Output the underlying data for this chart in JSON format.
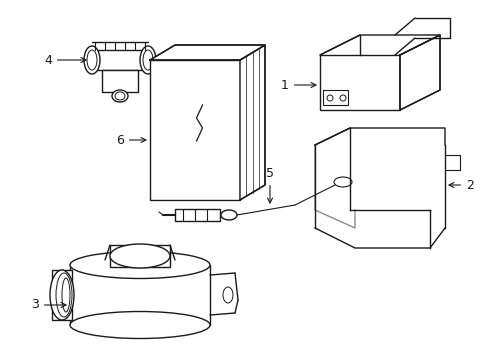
{
  "background_color": "#ffffff",
  "line_color": "#1a1a1a",
  "line_width": 1.0,
  "label_fontsize": 9,
  "figsize": [
    4.89,
    3.6
  ],
  "dpi": 100
}
